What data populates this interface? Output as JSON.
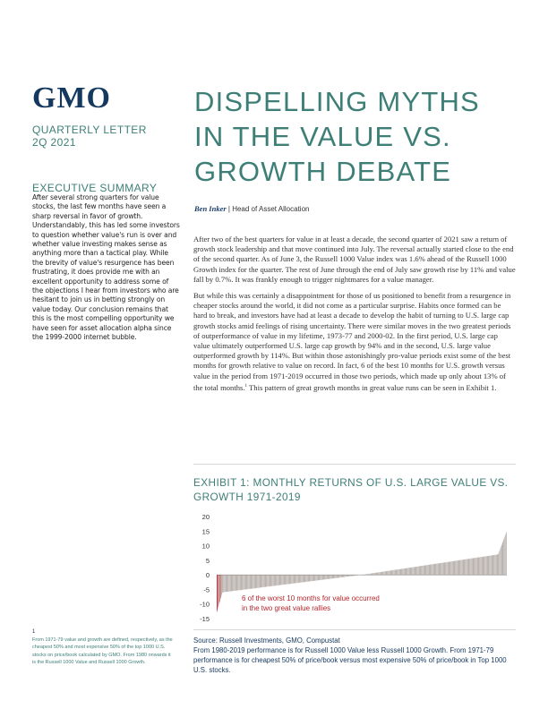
{
  "logo": "GMO",
  "letter": {
    "type": "QUARTERLY LETTER",
    "period": "2Q 2021"
  },
  "title_lines": [
    "DISPELLING MYTHS",
    "IN THE VALUE VS.",
    "GROWTH DEBATE"
  ],
  "byline": {
    "author": "Ben Inker",
    "sep": " | ",
    "role": "Head of Asset Allocation"
  },
  "executive_summary": {
    "heading": "EXECUTIVE SUMMARY",
    "text": "After several strong quarters for value stocks, the last few months have seen a sharp reversal in favor of growth. Understandably, this has led some investors to question whether value's run is over and whether value investing makes sense as anything more than a tactical play. While the brevity of value's resurgence has been frustrating, it does provide me with an excellent opportunity to address some of the objections I hear from investors who are hesitant to join us in betting strongly on value today. Our conclusion remains that this is the most compelling opportunity we have seen for asset allocation alpha since the 1999-2000 internet bubble."
  },
  "body": {
    "p1": "After two of the best quarters for value in at least a decade, the second quarter of 2021 saw a return of growth stock leadership and that move continued into July. The reversal actually started close to the end of the second quarter. As of June 3, the Russell 1000 Value index was 1.6% ahead of the Russell 1000 Growth index for the quarter. The rest of June through the end of July saw growth rise by 11% and value fall by 0.7%. It was frankly enough to trigger nightmares for a value manager.",
    "p2a": "But while this was certainly a disappointment for those of us positioned to benefit from a resurgence in cheaper stocks around the world, it did not come as a particular surprise. Habits once formed can be hard to break, and investors have had at least a decade to develop the habit of turning to U.S. large cap growth stocks amid feelings of rising uncertainty. There were similar moves in the two greatest periods of outperformance of value in my lifetime, 1973-77 and 2000-02. In the first period, U.S. large cap value ultimately outperformed U.S. large cap growth by 94% and in the second, U.S. large value outperformed growth by 114%. But within those astonishingly pro-value periods exist some of the best months for growth relative to value on record. In fact, 6 of the best 10 months for U.S. growth versus value in the period from 1971-2019 occurred in those two periods, which made up only about 13% of the total months.",
    "p2_sup": "1",
    "p2b": " This pattern of great growth months in great value runs can be seen in Exhibit 1."
  },
  "exhibit": {
    "title": "EXHIBIT 1: MONTHLY RETURNS OF U.S. LARGE VALUE VS. GROWTH 1971-2019"
  },
  "chart_data": {
    "type": "bar",
    "title": "EXHIBIT 1: MONTHLY RETURNS OF U.S. LARGE VALUE VS. GROWTH 1971-2019",
    "description": "Monthly value-minus-growth returns, sorted ascending",
    "n_months": 588,
    "ylim": [
      -15,
      20
    ],
    "yticks": [
      20,
      15,
      10,
      5,
      0,
      -5,
      -10,
      -15
    ],
    "ytick_labels": [
      "20",
      "15",
      "10",
      "5",
      "0",
      "-5",
      "-10",
      "-15"
    ],
    "min_value": -13,
    "max_value": 15,
    "highlight_count": 6,
    "highlight_ranks": [
      1,
      2,
      4,
      6,
      7,
      9
    ],
    "annotation": [
      "6 of the worst 10 months for value occurred",
      "in the two great value rallies"
    ],
    "bar_color": "#b0a8a3",
    "highlight_color": "#b5252a"
  },
  "source": {
    "line1": "Source: Russell Investments, GMO, Compustat",
    "line2": "From 1980-2019 performance is for Russell 1000 Value less Russell 1000 Growth. From 1971-79 performance is for cheapest 50% of price/book versus most expensive 50% of price/book in Top 1000 U.S. stocks."
  },
  "footnote": {
    "number": "1",
    "text": "From 1971-79 value and growth are defined, respectively, as the cheapest 50% and most expensive 50% of the top 1000 U.S. stocks on price/book calculated by GMO. From 1980 onwards it is the Russell 1000 Value and Russell 1000 Growth."
  }
}
